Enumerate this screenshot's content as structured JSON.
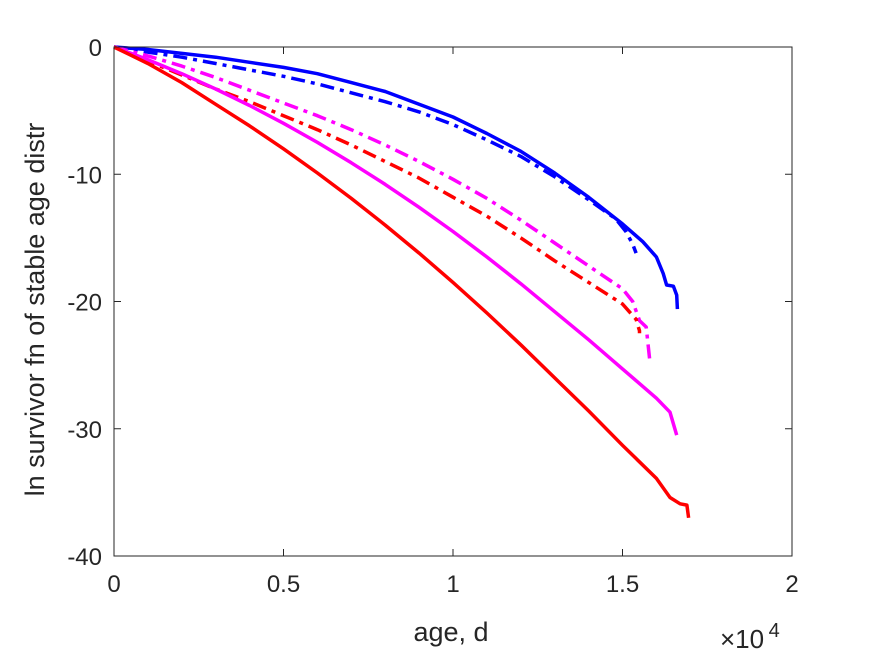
{
  "chart_data": {
    "type": "line",
    "xlabel": "age, d",
    "ylabel": "ln survivor fn of stable age distr",
    "x_multiplier": {
      "base": "×10",
      "exponent": "4"
    },
    "xlim": [
      0,
      20000
    ],
    "ylim": [
      -40,
      0
    ],
    "xticks": [
      0,
      5000,
      10000,
      15000,
      20000
    ],
    "xtick_labels": [
      "0",
      "0.5",
      "1",
      "1.5",
      "2"
    ],
    "yticks": [
      0,
      -10,
      -20,
      -30,
      -40
    ],
    "ytick_labels": [
      "0",
      "-10",
      "-20",
      "-30",
      "-40"
    ],
    "grid": false,
    "series": [
      {
        "color": "#0000ff",
        "style": "solid",
        "points": [
          [
            0,
            0
          ],
          [
            1000,
            -0.2
          ],
          [
            2000,
            -0.5
          ],
          [
            3000,
            -0.8
          ],
          [
            4000,
            -1.2
          ],
          [
            5000,
            -1.6
          ],
          [
            6000,
            -2.1
          ],
          [
            7000,
            -2.8
          ],
          [
            8000,
            -3.5
          ],
          [
            9000,
            -4.5
          ],
          [
            10000,
            -5.5
          ],
          [
            11000,
            -6.8
          ],
          [
            12000,
            -8.2
          ],
          [
            13000,
            -9.9
          ],
          [
            14000,
            -11.8
          ],
          [
            15000,
            -13.9
          ],
          [
            15600,
            -15.3
          ],
          [
            16000,
            -16.5
          ],
          [
            16200,
            -17.8
          ],
          [
            16300,
            -18.7
          ],
          [
            16500,
            -18.8
          ],
          [
            16600,
            -19.5
          ],
          [
            16620,
            -20.6
          ]
        ]
      },
      {
        "color": "#0000ff",
        "style": "dashdot",
        "points": [
          [
            0,
            0
          ],
          [
            1000,
            -0.4
          ],
          [
            2000,
            -0.8
          ],
          [
            3000,
            -1.3
          ],
          [
            4000,
            -1.8
          ],
          [
            5000,
            -2.3
          ],
          [
            6000,
            -2.9
          ],
          [
            7000,
            -3.6
          ],
          [
            8000,
            -4.3
          ],
          [
            9000,
            -5.1
          ],
          [
            10000,
            -6.1
          ],
          [
            11000,
            -7.3
          ],
          [
            12000,
            -8.6
          ],
          [
            13000,
            -10.2
          ],
          [
            14000,
            -12
          ],
          [
            14800,
            -13.5
          ],
          [
            15100,
            -14.5
          ],
          [
            15300,
            -15.5
          ],
          [
            15400,
            -16.2
          ]
        ]
      },
      {
        "color": "#ff00ff",
        "style": "dashdot",
        "points": [
          [
            0,
            0
          ],
          [
            1000,
            -0.7
          ],
          [
            2000,
            -1.5
          ],
          [
            3000,
            -2.4
          ],
          [
            4000,
            -3.4
          ],
          [
            5000,
            -4.4
          ],
          [
            6000,
            -5.4
          ],
          [
            7000,
            -6.5
          ],
          [
            8000,
            -7.7
          ],
          [
            9000,
            -9
          ],
          [
            10000,
            -10.4
          ],
          [
            11000,
            -11.9
          ],
          [
            12000,
            -13.6
          ],
          [
            13000,
            -15.4
          ],
          [
            14000,
            -17.2
          ],
          [
            15000,
            -19
          ],
          [
            15300,
            -20
          ],
          [
            15500,
            -21.5
          ],
          [
            15700,
            -22
          ],
          [
            15800,
            -24.5
          ]
        ]
      },
      {
        "color": "#ff0000",
        "style": "dashdot",
        "points": [
          [
            0,
            0
          ],
          [
            1000,
            -1.1
          ],
          [
            2000,
            -2.2
          ],
          [
            3000,
            -3.3
          ],
          [
            4000,
            -4.3
          ],
          [
            5000,
            -5.4
          ],
          [
            6000,
            -6.5
          ],
          [
            7000,
            -7.7
          ],
          [
            8000,
            -9
          ],
          [
            9000,
            -10.3
          ],
          [
            10000,
            -11.8
          ],
          [
            11000,
            -13.3
          ],
          [
            12000,
            -15
          ],
          [
            13000,
            -16.8
          ],
          [
            14000,
            -18.5
          ],
          [
            15000,
            -20.2
          ],
          [
            15200,
            -20.8
          ],
          [
            15400,
            -21.4
          ],
          [
            15500,
            -22.3
          ],
          [
            15500,
            -22.5
          ]
        ]
      },
      {
        "color": "#ff00ff",
        "style": "solid",
        "points": [
          [
            0,
            0
          ],
          [
            1000,
            -1
          ],
          [
            2000,
            -2.1
          ],
          [
            3000,
            -3.3
          ],
          [
            4000,
            -4.6
          ],
          [
            5000,
            -6
          ],
          [
            6000,
            -7.5
          ],
          [
            7000,
            -9.1
          ],
          [
            8000,
            -10.8
          ],
          [
            9000,
            -12.6
          ],
          [
            10000,
            -14.5
          ],
          [
            11000,
            -16.5
          ],
          [
            12000,
            -18.6
          ],
          [
            13000,
            -20.8
          ],
          [
            14000,
            -23
          ],
          [
            15000,
            -25.3
          ],
          [
            16000,
            -27.6
          ],
          [
            16400,
            -28.7
          ],
          [
            16600,
            -30.5
          ]
        ]
      },
      {
        "color": "#ff0000",
        "style": "solid",
        "points": [
          [
            0,
            0
          ],
          [
            1000,
            -1.3
          ],
          [
            2000,
            -2.8
          ],
          [
            3000,
            -4.5
          ],
          [
            4000,
            -6.2
          ],
          [
            5000,
            -8
          ],
          [
            6000,
            -9.9
          ],
          [
            7000,
            -11.9
          ],
          [
            8000,
            -14
          ],
          [
            9000,
            -16.2
          ],
          [
            10000,
            -18.5
          ],
          [
            11000,
            -20.9
          ],
          [
            12000,
            -23.4
          ],
          [
            13000,
            -26
          ],
          [
            14000,
            -28.6
          ],
          [
            15000,
            -31.3
          ],
          [
            16000,
            -33.9
          ],
          [
            16400,
            -35.4
          ],
          [
            16700,
            -35.9
          ],
          [
            16900,
            -36
          ],
          [
            16950,
            -37
          ]
        ]
      }
    ]
  }
}
